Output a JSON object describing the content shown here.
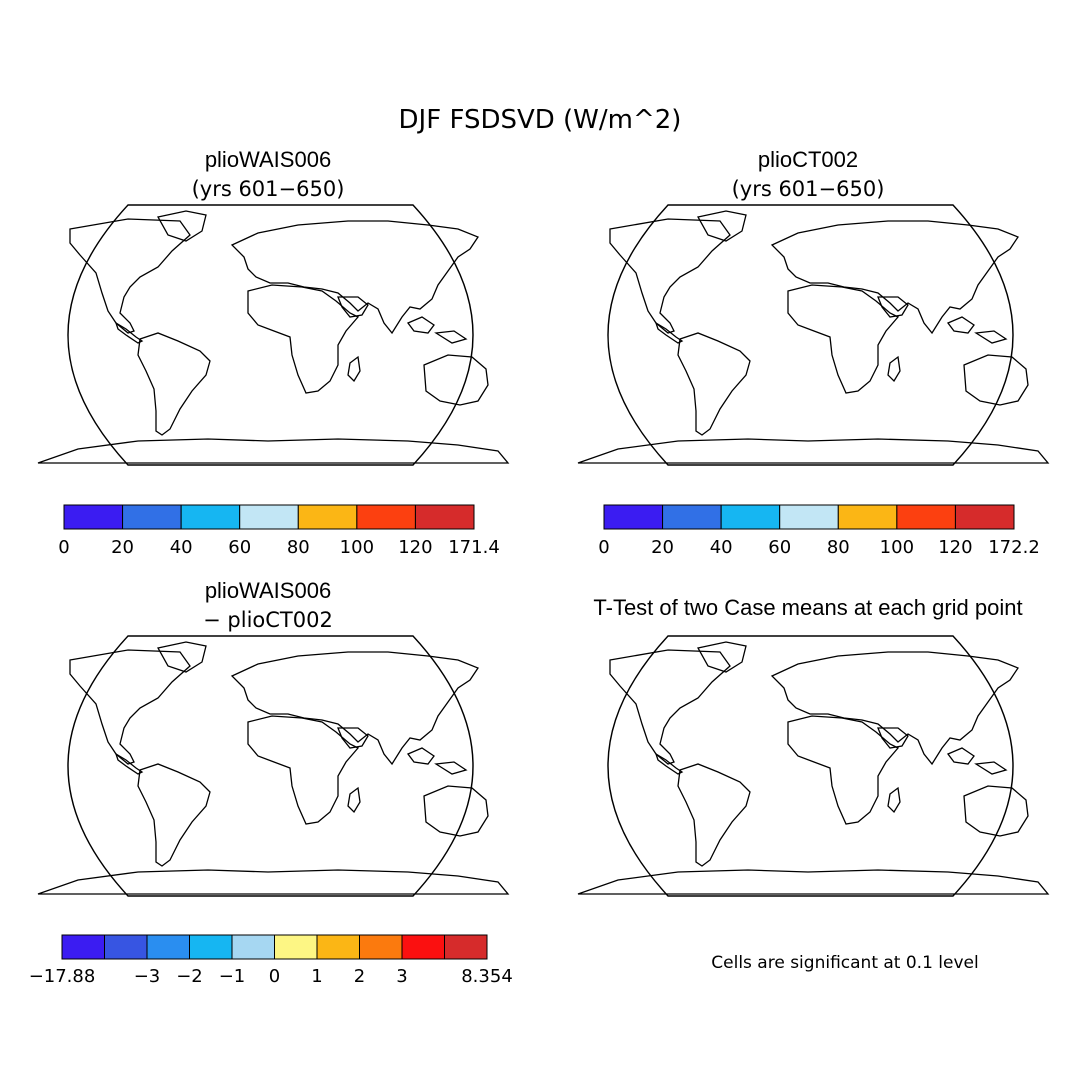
{
  "main_title": "DJF FSDSVD (W/m^2)",
  "panels": [
    {
      "title": "plioWAIS006",
      "subtitle": "(yrs 601−650)",
      "type": "field"
    },
    {
      "title": "plioCT002",
      "subtitle": "(yrs 601−650)",
      "type": "field"
    },
    {
      "title": "plioWAIS006",
      "subtitle": "− plioCT002",
      "type": "diff"
    },
    {
      "title": "T-Test of two Case means at each grid point",
      "subtitle": "",
      "type": "ttest"
    }
  ],
  "colorbars": [
    {
      "colors": [
        "#3b1cf2",
        "#3170e6",
        "#16b6f2",
        "#c2e6f5",
        "#fbb615",
        "#fc4010",
        "#d62b2b"
      ],
      "labels": [
        "0",
        "20",
        "40",
        "60",
        "80",
        "100",
        "120",
        "171.4"
      ]
    },
    {
      "colors": [
        "#3b1cf2",
        "#3170e6",
        "#16b6f2",
        "#c2e6f5",
        "#fbb615",
        "#fc4010",
        "#d62b2b"
      ],
      "labels": [
        "0",
        "20",
        "40",
        "60",
        "80",
        "100",
        "120",
        "172.2"
      ]
    },
    {
      "colors": [
        "#3b1cf2",
        "#3755e2",
        "#2a8ef0",
        "#16b6f2",
        "#a6d7f2",
        "#fdf684",
        "#fbb615",
        "#fb7a0e",
        "#fb1010",
        "#d62b2b"
      ],
      "labels": [
        "−17.88",
        "",
        "−3",
        "−2",
        "−1",
        "0",
        "1",
        "2",
        "3",
        "",
        "8.354"
      ]
    }
  ],
  "footnote": "Cells are significant at 0.1 level",
  "legend_colors": {
    "ttest_significant": "#fb1010",
    "ocean": "#ffffff",
    "coastline": "#000000"
  }
}
